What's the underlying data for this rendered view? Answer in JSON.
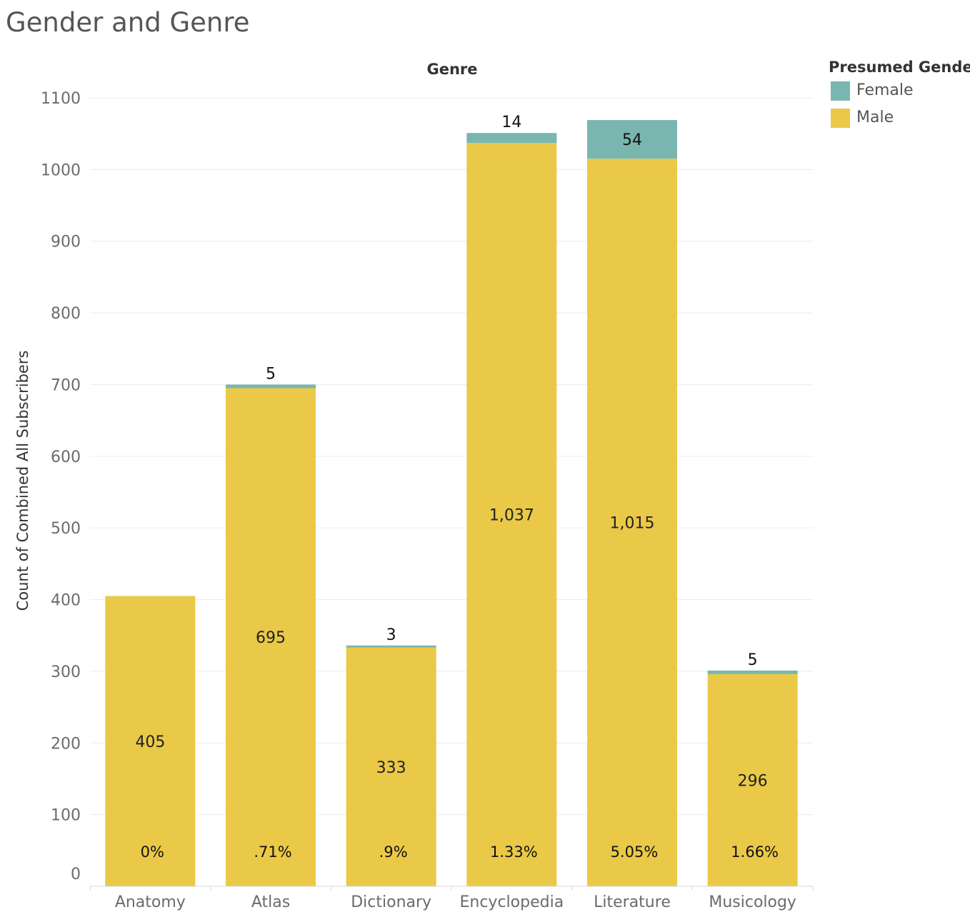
{
  "title": "Gender and Genre",
  "legend": {
    "title": "Presumed Gender",
    "items": [
      {
        "label": "Female",
        "color": "#7ab6b0"
      },
      {
        "label": "Male",
        "color": "#eac948"
      }
    ]
  },
  "chart_data": {
    "type": "bar",
    "stacked": true,
    "title": "Gender and Genre",
    "xlabel": "Genre",
    "ylabel": "Count of Combined All Subscribers",
    "ylim": [
      0,
      1100
    ],
    "yticks": [
      0,
      100,
      200,
      300,
      400,
      500,
      600,
      700,
      800,
      900,
      1000,
      1100
    ],
    "categories": [
      "Anatomy",
      "Atlas",
      "Dictionary",
      "Encyclopedia",
      "Literature",
      "Musicology"
    ],
    "series": [
      {
        "name": "Male",
        "color": "#eac948",
        "values": [
          405,
          695,
          333,
          1037,
          1015,
          296
        ],
        "labels": [
          "405",
          "695",
          "333",
          "1,037",
          "1,015",
          "296"
        ]
      },
      {
        "name": "Female",
        "color": "#7ab6b0",
        "values": [
          0,
          5,
          3,
          14,
          54,
          5
        ],
        "labels": [
          "",
          "5",
          "3",
          "14",
          "54",
          "5"
        ]
      }
    ],
    "percent_labels": [
      "0%",
      ".71%",
      ".9%",
      "1.33%",
      "5.05%",
      "1.66%"
    ],
    "grid": true,
    "legend_position": "top-right"
  }
}
